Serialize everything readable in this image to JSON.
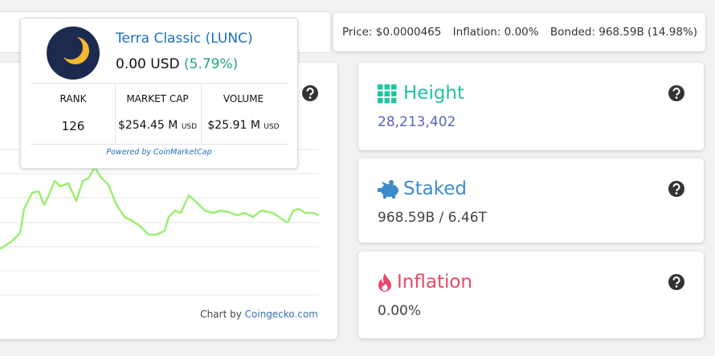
{
  "coin_widget": {
    "name": "Terra Classic (LUNC)",
    "price": "0.00 USD",
    "change": "(5.79%)",
    "stats": [
      {
        "label": "RANK",
        "value": "126"
      },
      {
        "label": "MARKET CAP",
        "value": "$254.45 M",
        "unit": "USD"
      },
      {
        "label": "VOLUME",
        "value": "$25.91 M",
        "unit": "USD"
      }
    ],
    "powered_by": "Powered by CoinMarketCap"
  },
  "chart_credit": {
    "prefix": "Chart by",
    "link": "Coingecko.com"
  },
  "price_bar": [
    "Price: $0.0000465",
    "Inflation: 0.00%",
    "Bonded: 968.59B (14.98%)"
  ],
  "cards": [
    {
      "title": "Height",
      "value": "28,213,402"
    },
    {
      "title": "Staked",
      "value": "968.59B / 6.46T"
    },
    {
      "title": "Inflation",
      "value": "0.00%"
    }
  ]
}
